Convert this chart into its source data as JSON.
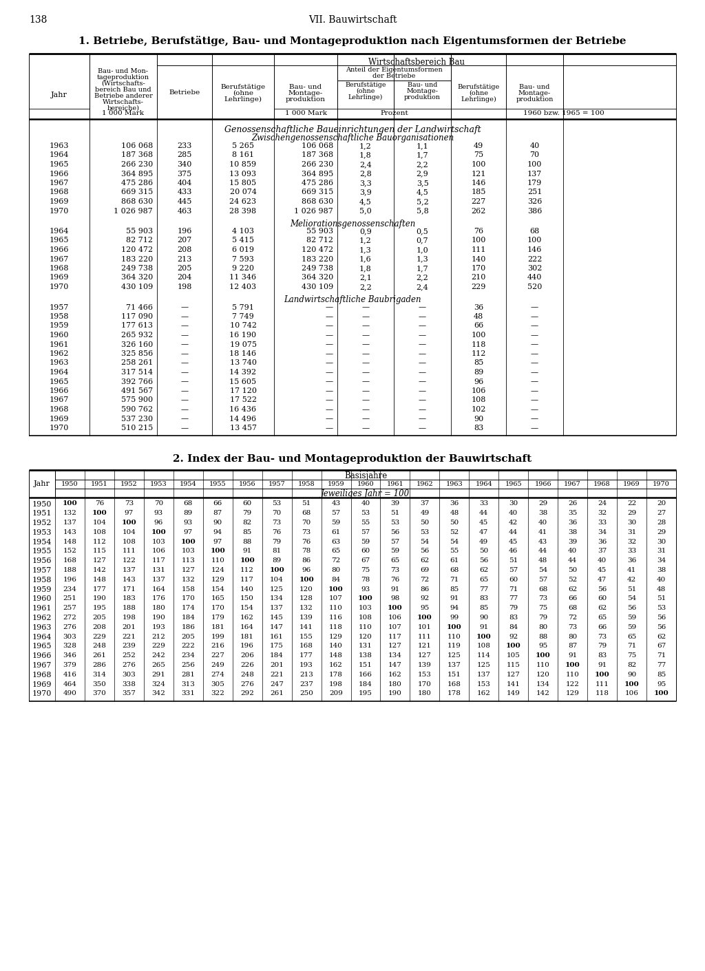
{
  "page_num": "138",
  "page_header": "VII. Bauwirtschaft",
  "title1": "1. Betriebe, Berufstätige, Bau- und Montageproduktion nach Eigentumsformen der Betriebe",
  "title2": "2. Index der Bau- und Montageproduktion der Bauwirtschaft",
  "section1_title": "Genossenschaftliche Baueinrichtungen der Landwirtschaft",
  "subsection1_title": "Zwischengenossenschaftliche Bauorganisationen",
  "section1_data": [
    [
      "1963",
      "106 068",
      "233",
      "5 265",
      "106 068",
      "1,2",
      "1,1",
      "49",
      "40"
    ],
    [
      "1964",
      "187 368",
      "285",
      "8 161",
      "187 368",
      "1,8",
      "1,7",
      "75",
      "70"
    ],
    [
      "1965",
      "266 230",
      "340",
      "10 859",
      "266 230",
      "2,4",
      "2,2",
      "100",
      "100"
    ],
    [
      "1966",
      "364 895",
      "375",
      "13 093",
      "364 895",
      "2,8",
      "2,9",
      "121",
      "137"
    ],
    [
      "1967",
      "475 286",
      "404",
      "15 805",
      "475 286",
      "3,3",
      "3,5",
      "146",
      "179"
    ],
    [
      "1968",
      "669 315",
      "433",
      "20 074",
      "669 315",
      "3,9",
      "4,5",
      "185",
      "251"
    ],
    [
      "1969",
      "868 630",
      "445",
      "24 623",
      "868 630",
      "4,5",
      "5,2",
      "227",
      "326"
    ],
    [
      "1970",
      "1 026 987",
      "463",
      "28 398",
      "1 026 987",
      "5,0",
      "5,8",
      "262",
      "386"
    ]
  ],
  "subsection2_title": "Meliorationsgenossenschaften",
  "section2_data": [
    [
      "1964",
      "55 903",
      "196",
      "4 103",
      "55 903",
      "0,9",
      "0,5",
      "76",
      "68"
    ],
    [
      "1965",
      "82 712",
      "207",
      "5 415",
      "82 712",
      "1,2",
      "0,7",
      "100",
      "100"
    ],
    [
      "1966",
      "120 472",
      "208",
      "6 019",
      "120 472",
      "1,3",
      "1,0",
      "111",
      "146"
    ],
    [
      "1967",
      "183 220",
      "213",
      "7 593",
      "183 220",
      "1,6",
      "1,3",
      "140",
      "222"
    ],
    [
      "1968",
      "249 738",
      "205",
      "9 220",
      "249 738",
      "1,8",
      "1,7",
      "170",
      "302"
    ],
    [
      "1969",
      "364 320",
      "204",
      "11 346",
      "364 320",
      "2,1",
      "2,2",
      "210",
      "440"
    ],
    [
      "1970",
      "430 109",
      "198",
      "12 403",
      "430 109",
      "2,2",
      "2,4",
      "229",
      "520"
    ]
  ],
  "subsection3_title": "Landwirtschaftliche Baubrigaden",
  "section3_data": [
    [
      "1957",
      "71 466",
      "—",
      "5 791",
      "—",
      "—",
      "—",
      "36",
      "—"
    ],
    [
      "1958",
      "117 090",
      "—",
      "7 749",
      "—",
      "—",
      "—",
      "48",
      "—"
    ],
    [
      "1959",
      "177 613",
      "—",
      "10 742",
      "—",
      "—",
      "—",
      "66",
      "—"
    ],
    [
      "1960",
      "265 932",
      "—",
      "16 190",
      "—",
      "—",
      "—",
      "100",
      "—"
    ],
    [
      "1961",
      "326 160",
      "—",
      "19 075",
      "—",
      "—",
      "—",
      "118",
      "—"
    ],
    [
      "1962",
      "325 856",
      "—",
      "18 146",
      "—",
      "—",
      "—",
      "112",
      "—"
    ],
    [
      "1963",
      "258 261",
      "—",
      "13 740",
      "—",
      "—",
      "—",
      "85",
      "—"
    ],
    [
      "1964",
      "317 514",
      "—",
      "14 392",
      "—",
      "—",
      "—",
      "89",
      "—"
    ],
    [
      "1965",
      "392 766",
      "—",
      "15 605",
      "—",
      "—",
      "—",
      "96",
      "—"
    ],
    [
      "1966",
      "491 567",
      "—",
      "17 120",
      "—",
      "—",
      "—",
      "106",
      "—"
    ],
    [
      "1967",
      "575 900",
      "—",
      "17 522",
      "—",
      "—",
      "—",
      "108",
      "—"
    ],
    [
      "1968",
      "590 762",
      "—",
      "16 436",
      "—",
      "—",
      "—",
      "102",
      "—"
    ],
    [
      "1969",
      "537 230",
      "—",
      "14 496",
      "—",
      "—",
      "—",
      "90",
      "—"
    ],
    [
      "1970",
      "510 215",
      "—",
      "13 457",
      "—",
      "—",
      "—",
      "83",
      "—"
    ]
  ],
  "table2_years_col": [
    "1950",
    "1951",
    "1952",
    "1953",
    "1954",
    "1955",
    "1956",
    "1957",
    "1958",
    "1959",
    "1960",
    "1961",
    "1962",
    "1963",
    "1964",
    "1965",
    "1966",
    "1967",
    "1968",
    "1969",
    "1970"
  ],
  "table2_base_years": [
    "1950",
    "1951",
    "1952",
    "1953",
    "1954",
    "1955",
    "1956",
    "1957",
    "1958",
    "1959",
    "1960",
    "1961",
    "1962",
    "1963",
    "1964",
    "1965",
    "1966",
    "1967",
    "1968",
    "1969",
    "1970"
  ],
  "table2_data": [
    [
      100,
      76,
      73,
      70,
      68,
      66,
      60,
      53,
      51,
      43,
      40,
      39,
      37,
      36,
      33,
      30,
      29,
      26,
      24,
      22,
      20
    ],
    [
      132,
      100,
      97,
      93,
      89,
      87,
      79,
      70,
      68,
      57,
      53,
      51,
      49,
      48,
      44,
      40,
      38,
      35,
      32,
      29,
      27
    ],
    [
      137,
      104,
      100,
      96,
      93,
      90,
      82,
      73,
      70,
      59,
      55,
      53,
      50,
      50,
      45,
      42,
      40,
      36,
      33,
      30,
      28
    ],
    [
      143,
      108,
      104,
      100,
      97,
      94,
      85,
      76,
      73,
      61,
      57,
      56,
      53,
      52,
      47,
      44,
      41,
      38,
      34,
      31,
      29
    ],
    [
      148,
      112,
      108,
      103,
      100,
      97,
      88,
      79,
      76,
      63,
      59,
      57,
      54,
      54,
      49,
      45,
      43,
      39,
      36,
      32,
      30
    ],
    [
      152,
      115,
      111,
      106,
      103,
      100,
      91,
      81,
      78,
      65,
      60,
      59,
      56,
      55,
      50,
      46,
      44,
      40,
      37,
      33,
      31
    ],
    [
      168,
      127,
      122,
      117,
      113,
      110,
      100,
      89,
      86,
      72,
      67,
      65,
      62,
      61,
      56,
      51,
      48,
      44,
      40,
      36,
      34
    ],
    [
      188,
      142,
      137,
      131,
      127,
      124,
      112,
      100,
      96,
      80,
      75,
      73,
      69,
      68,
      62,
      57,
      54,
      50,
      45,
      41,
      38
    ],
    [
      196,
      148,
      143,
      137,
      132,
      129,
      117,
      104,
      100,
      84,
      78,
      76,
      72,
      71,
      65,
      60,
      57,
      52,
      47,
      42,
      40
    ],
    [
      234,
      177,
      171,
      164,
      158,
      154,
      140,
      125,
      120,
      100,
      93,
      91,
      86,
      85,
      77,
      71,
      68,
      62,
      56,
      51,
      48
    ],
    [
      251,
      190,
      183,
      176,
      170,
      165,
      150,
      134,
      128,
      107,
      100,
      98,
      92,
      91,
      83,
      77,
      73,
      66,
      60,
      54,
      51
    ],
    [
      257,
      195,
      188,
      180,
      174,
      170,
      154,
      137,
      132,
      110,
      103,
      100,
      95,
      94,
      85,
      79,
      75,
      68,
      62,
      56,
      53
    ],
    [
      272,
      205,
      198,
      190,
      184,
      179,
      162,
      145,
      139,
      116,
      108,
      106,
      100,
      99,
      90,
      83,
      79,
      72,
      65,
      59,
      56
    ],
    [
      276,
      208,
      201,
      193,
      186,
      181,
      164,
      147,
      141,
      118,
      110,
      107,
      101,
      100,
      91,
      84,
      80,
      73,
      66,
      59,
      56
    ],
    [
      303,
      229,
      221,
      212,
      205,
      199,
      181,
      161,
      155,
      129,
      120,
      117,
      111,
      110,
      100,
      92,
      88,
      80,
      73,
      65,
      62
    ],
    [
      328,
      248,
      239,
      229,
      222,
      216,
      196,
      175,
      168,
      140,
      131,
      127,
      121,
      119,
      108,
      100,
      95,
      87,
      79,
      71,
      67
    ],
    [
      346,
      261,
      252,
      242,
      234,
      227,
      206,
      184,
      177,
      148,
      138,
      134,
      127,
      125,
      114,
      105,
      100,
      91,
      83,
      75,
      71
    ],
    [
      379,
      286,
      276,
      265,
      256,
      249,
      226,
      201,
      193,
      162,
      151,
      147,
      139,
      137,
      125,
      115,
      110,
      100,
      91,
      82,
      77
    ],
    [
      416,
      314,
      303,
      291,
      281,
      274,
      248,
      221,
      213,
      178,
      166,
      162,
      153,
      151,
      137,
      127,
      120,
      110,
      100,
      90,
      85
    ],
    [
      464,
      350,
      338,
      324,
      313,
      305,
      276,
      247,
      237,
      198,
      184,
      180,
      170,
      168,
      153,
      141,
      134,
      122,
      111,
      100,
      95
    ],
    [
      490,
      370,
      357,
      342,
      331,
      322,
      292,
      261,
      250,
      209,
      195,
      190,
      180,
      178,
      162,
      149,
      142,
      129,
      118,
      106,
      100
    ]
  ]
}
